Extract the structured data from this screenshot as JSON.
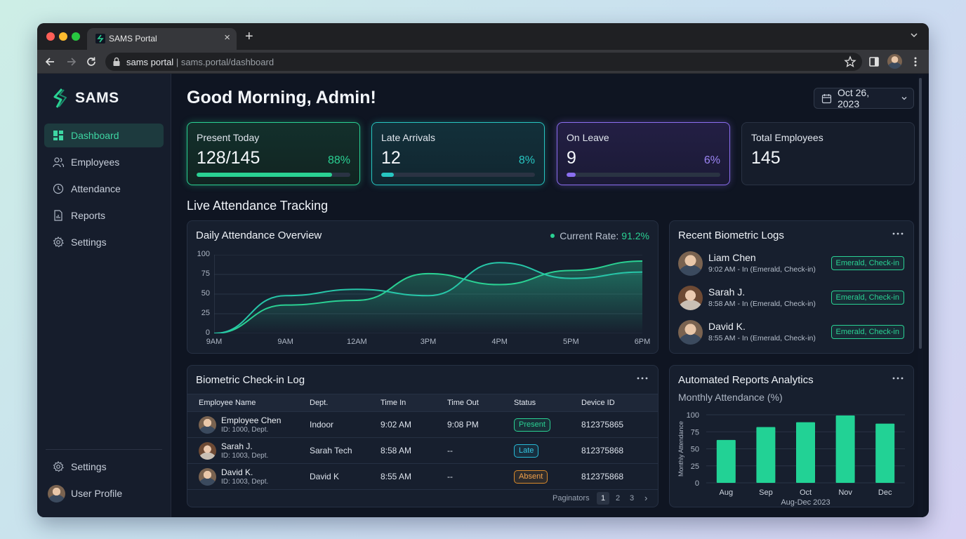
{
  "browser": {
    "tab_title": "SAMS Portal",
    "new_tab": "+",
    "close_tab": "×",
    "url_host": "sams portal",
    "url_sep": " | ",
    "url_path": "sams.portal/dashboard"
  },
  "sidebar": {
    "brand": "SAMS",
    "items": [
      {
        "label": "Dashboard",
        "icon": "dashboard-icon"
      },
      {
        "label": "Employees",
        "icon": "users-icon"
      },
      {
        "label": "Attendance",
        "icon": "clock-icon"
      },
      {
        "label": "Reports",
        "icon": "report-icon"
      },
      {
        "label": "Settings",
        "icon": "gear-icon"
      }
    ],
    "bottom": {
      "settings": "Settings",
      "profile": "User Profile"
    }
  },
  "header": {
    "greeting": "Good Morning, Admin!",
    "date": "Oct 26, 2023"
  },
  "stats": [
    {
      "label": "Present Today",
      "value": "128/145",
      "percent": "88%",
      "progress": 88,
      "color": "#2ad193"
    },
    {
      "label": "Late Arrivals",
      "value": "12",
      "percent": "8%",
      "progress": 8,
      "color": "#27c6c1"
    },
    {
      "label": "On Leave",
      "value": "9",
      "percent": "6%",
      "progress": 6,
      "color": "#8b6ef0"
    },
    {
      "label": "Total Employees",
      "value": "145"
    }
  ],
  "section_title": "Live Attendance Tracking",
  "overview": {
    "title": "Daily Attendance Overview",
    "rate_label": "Current Rate:",
    "rate_value": "91.2%"
  },
  "chart_data": [
    {
      "type": "area",
      "title": "Daily Attendance Overview",
      "categories": [
        "9AM",
        "9AM",
        "12AM",
        "3PM",
        "4PM",
        "5PM",
        "6PM"
      ],
      "ylim": [
        0,
        100
      ],
      "yticks": [
        0,
        25,
        50,
        75,
        100
      ],
      "series": [
        {
          "values": [
            0,
            36,
            42,
            76,
            62,
            80,
            92
          ]
        },
        {
          "values": [
            0,
            48,
            56,
            48,
            90,
            70,
            78
          ]
        }
      ],
      "grid": true,
      "colors": [
        "#2ad193",
        "#27c6a8"
      ]
    },
    {
      "type": "bar",
      "title": "Monthly Attendance (%)",
      "ylabel": "Monthly Attendance",
      "xlabel": "Aug-Dec 2023",
      "categories": [
        "Aug",
        "Sep",
        "Oct",
        "Nov",
        "Dec"
      ],
      "values": [
        63,
        82,
        89,
        99,
        87
      ],
      "ylim": [
        0,
        100
      ],
      "yticks": [
        0,
        25,
        50,
        75,
        100
      ],
      "grid": true,
      "color": "#22d295"
    }
  ],
  "recent_logs": {
    "title": "Recent Biometric Logs",
    "items": [
      {
        "name": "Liam Chen",
        "detail": "9:02 AM - In (Emerald, Check-in)",
        "badge": "Emerald, Check-in"
      },
      {
        "name": "Sarah J.",
        "detail": "8:58 AM - In (Emerald, Check-in)",
        "badge": "Emerald, Check-in"
      },
      {
        "name": "David K.",
        "detail": "8:55 AM - In (Emerald, Check-in)",
        "badge": "Emerald, Check-in"
      }
    ]
  },
  "checkin": {
    "title": "Biometric Check-in Log",
    "columns": [
      "Employee Name",
      "Dept.",
      "Time In",
      "Time Out",
      "Status",
      "Device ID"
    ],
    "rows": [
      {
        "name": "Employee Chen",
        "id": "ID: 1000, Dept.",
        "dept": "Indoor",
        "time_in": "9:02 AM",
        "time_out": "9:08 PM",
        "status": "Present",
        "device": "812375865"
      },
      {
        "name": "Sarah J.",
        "id": "ID: 1003, Dept.",
        "dept": "Sarah Tech",
        "time_in": "8:58 AM",
        "time_out": "--",
        "status": "Late",
        "device": "812375868"
      },
      {
        "name": "David K.",
        "id": "ID: 1003, Dept.",
        "dept": "David K",
        "time_in": "8:55 AM",
        "time_out": "--",
        "status": "Absent",
        "device": "812375868"
      }
    ],
    "pagination": {
      "label": "Paginators",
      "pages": [
        "1",
        "2",
        "3"
      ],
      "next": "›"
    }
  },
  "reports": {
    "title": "Automated Reports Analytics",
    "subtitle": "Monthly Attendance (%)"
  }
}
